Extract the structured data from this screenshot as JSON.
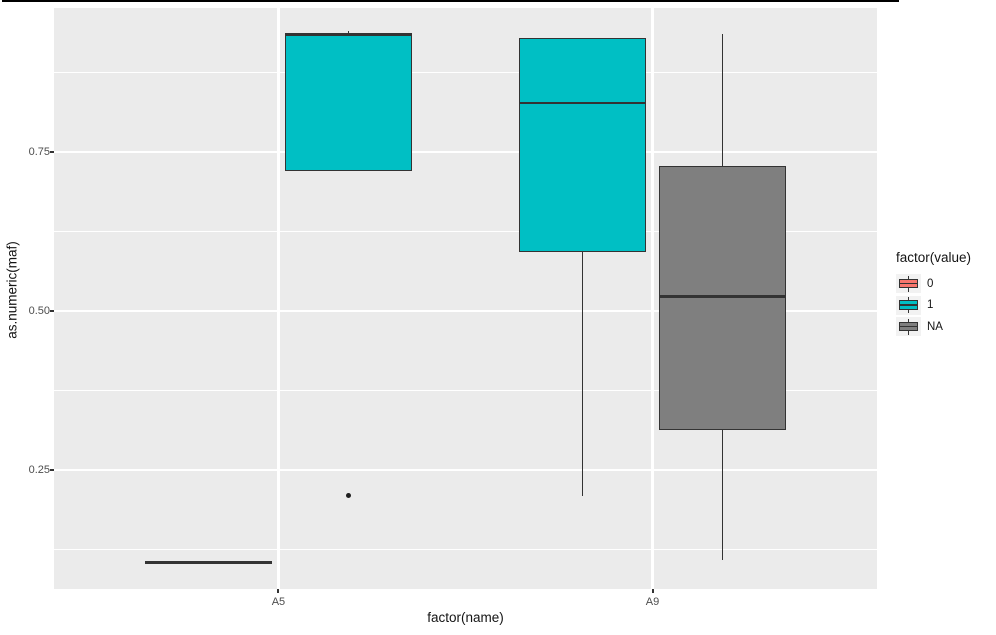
{
  "chart_data": {
    "type": "boxplot",
    "title": "",
    "xlabel": "factor(name)",
    "ylabel": "as.numeric(maf)",
    "categories": [
      "A5",
      "A9"
    ],
    "y_major_ticks": [
      0.25,
      0.5,
      0.75
    ],
    "y_minor_ticks": [
      0.125,
      0.375,
      0.625,
      0.875
    ],
    "ylim": [
      0.063,
      0.9765
    ],
    "x_range_units": [
      0.4,
      2.6
    ],
    "grid": "on",
    "legend_position": "right",
    "panel_bg": "#EBEBEB",
    "grid_color": "#FFFFFF",
    "box_border_color": "#333333",
    "legend": {
      "title": "factor(value)",
      "entries": [
        {
          "label": "0",
          "color": "#F8766D"
        },
        {
          "label": "1",
          "color": "#00BFC4"
        },
        {
          "label": "NA",
          "color": "#7F7F7F"
        }
      ]
    },
    "boxes": [
      {
        "category": "A5",
        "group": "0",
        "color": "#F8766D",
        "offset_units": -0.1875,
        "width_units": 0.34,
        "min": 0.105,
        "q1": 0.105,
        "median": 0.105,
        "q3": 0.105,
        "max": 0.105,
        "outliers": []
      },
      {
        "category": "A5",
        "group": "1",
        "color": "#00BFC4",
        "offset_units": 0.1875,
        "width_units": 0.34,
        "min": 0.72,
        "q1": 0.72,
        "median": 0.935,
        "q3": 0.935,
        "max": 0.94,
        "outliers": [
          0.21
        ]
      },
      {
        "category": "A9",
        "group": "1",
        "color": "#00BFC4",
        "offset_units": -0.1875,
        "width_units": 0.34,
        "min": 0.21,
        "q1": 0.593,
        "median": 0.827,
        "q3": 0.93,
        "max": 0.93,
        "outliers": []
      },
      {
        "category": "A9",
        "group": "NA",
        "color": "#7F7F7F",
        "offset_units": 0.1875,
        "width_units": 0.34,
        "min": 0.108,
        "q1": 0.313,
        "median": 0.523,
        "q3": 0.728,
        "max": 0.936,
        "outliers": []
      }
    ]
  }
}
